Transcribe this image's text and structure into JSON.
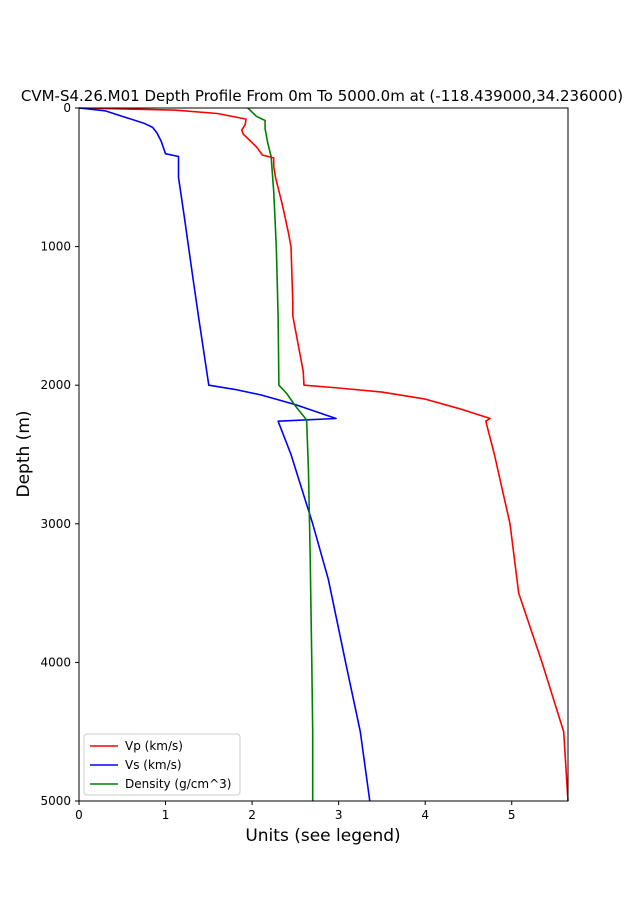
{
  "chart_data": {
    "type": "line",
    "title": "CVM-S4.26.M01 Depth Profile From 0m To 5000.0m at (-118.439000,34.236000)",
    "xlabel": "Units (see legend)",
    "ylabel": "Depth (m)",
    "xlim": [
      0,
      5.65
    ],
    "ylim": [
      5000,
      0
    ],
    "y_inverted": true,
    "xticks": [
      "0",
      "1",
      "2",
      "3",
      "4",
      "5"
    ],
    "xtick_values": [
      0,
      1,
      2,
      3,
      4,
      5
    ],
    "yticks": [
      "0",
      "1000",
      "2000",
      "3000",
      "4000",
      "5000"
    ],
    "ytick_values": [
      0,
      1000,
      2000,
      3000,
      4000,
      5000
    ],
    "legend_position": "lower-left",
    "series": [
      {
        "name": "Vp (km/s)",
        "color": "#ff0000",
        "points": [
          [
            0.0,
            0
          ],
          [
            1.1,
            15
          ],
          [
            1.6,
            40
          ],
          [
            1.93,
            80
          ],
          [
            1.92,
            120
          ],
          [
            1.88,
            160
          ],
          [
            1.9,
            190
          ],
          [
            2.05,
            280
          ],
          [
            2.12,
            340
          ],
          [
            2.25,
            360
          ],
          [
            2.25,
            420
          ],
          [
            2.27,
            500
          ],
          [
            2.35,
            700
          ],
          [
            2.42,
            900
          ],
          [
            2.45,
            1000
          ],
          [
            2.46,
            1200
          ],
          [
            2.47,
            1400
          ],
          [
            2.47,
            1500
          ],
          [
            2.53,
            1700
          ],
          [
            2.59,
            1900
          ],
          [
            2.6,
            2000
          ],
          [
            3.0,
            2020
          ],
          [
            3.5,
            2050
          ],
          [
            4.0,
            2100
          ],
          [
            4.4,
            2170
          ],
          [
            4.75,
            2240
          ],
          [
            4.7,
            2260
          ],
          [
            4.8,
            2500
          ],
          [
            4.98,
            3000
          ],
          [
            5.08,
            3500
          ],
          [
            5.35,
            4000
          ],
          [
            5.6,
            4500
          ],
          [
            5.65,
            5000
          ]
        ]
      },
      {
        "name": "Vs (km/s)",
        "color": "#0000ff",
        "points": [
          [
            0.0,
            0
          ],
          [
            0.3,
            20
          ],
          [
            0.55,
            70
          ],
          [
            0.75,
            110
          ],
          [
            0.85,
            140
          ],
          [
            0.9,
            180
          ],
          [
            0.95,
            240
          ],
          [
            1.0,
            330
          ],
          [
            1.15,
            350
          ],
          [
            1.15,
            500
          ],
          [
            1.22,
            800
          ],
          [
            1.31,
            1200
          ],
          [
            1.38,
            1500
          ],
          [
            1.5,
            2000
          ],
          [
            1.8,
            2030
          ],
          [
            2.1,
            2070
          ],
          [
            2.5,
            2140
          ],
          [
            2.97,
            2240
          ],
          [
            2.3,
            2260
          ],
          [
            2.45,
            2500
          ],
          [
            2.7,
            3000
          ],
          [
            2.88,
            3400
          ],
          [
            3.08,
            4000
          ],
          [
            3.25,
            4500
          ],
          [
            3.36,
            5000
          ]
        ]
      },
      {
        "name": "Density (g/cm^3)",
        "color": "#008000",
        "points": [
          [
            1.95,
            0
          ],
          [
            2.05,
            60
          ],
          [
            2.15,
            90
          ],
          [
            2.15,
            150
          ],
          [
            2.18,
            250
          ],
          [
            2.22,
            350
          ],
          [
            2.25,
            600
          ],
          [
            2.28,
            1000
          ],
          [
            2.3,
            1500
          ],
          [
            2.31,
            2000
          ],
          [
            2.4,
            2060
          ],
          [
            2.5,
            2150
          ],
          [
            2.63,
            2250
          ],
          [
            2.65,
            2600
          ],
          [
            2.67,
            3200
          ],
          [
            2.69,
            4000
          ],
          [
            2.7,
            4500
          ],
          [
            2.7,
            5000
          ]
        ]
      }
    ]
  }
}
